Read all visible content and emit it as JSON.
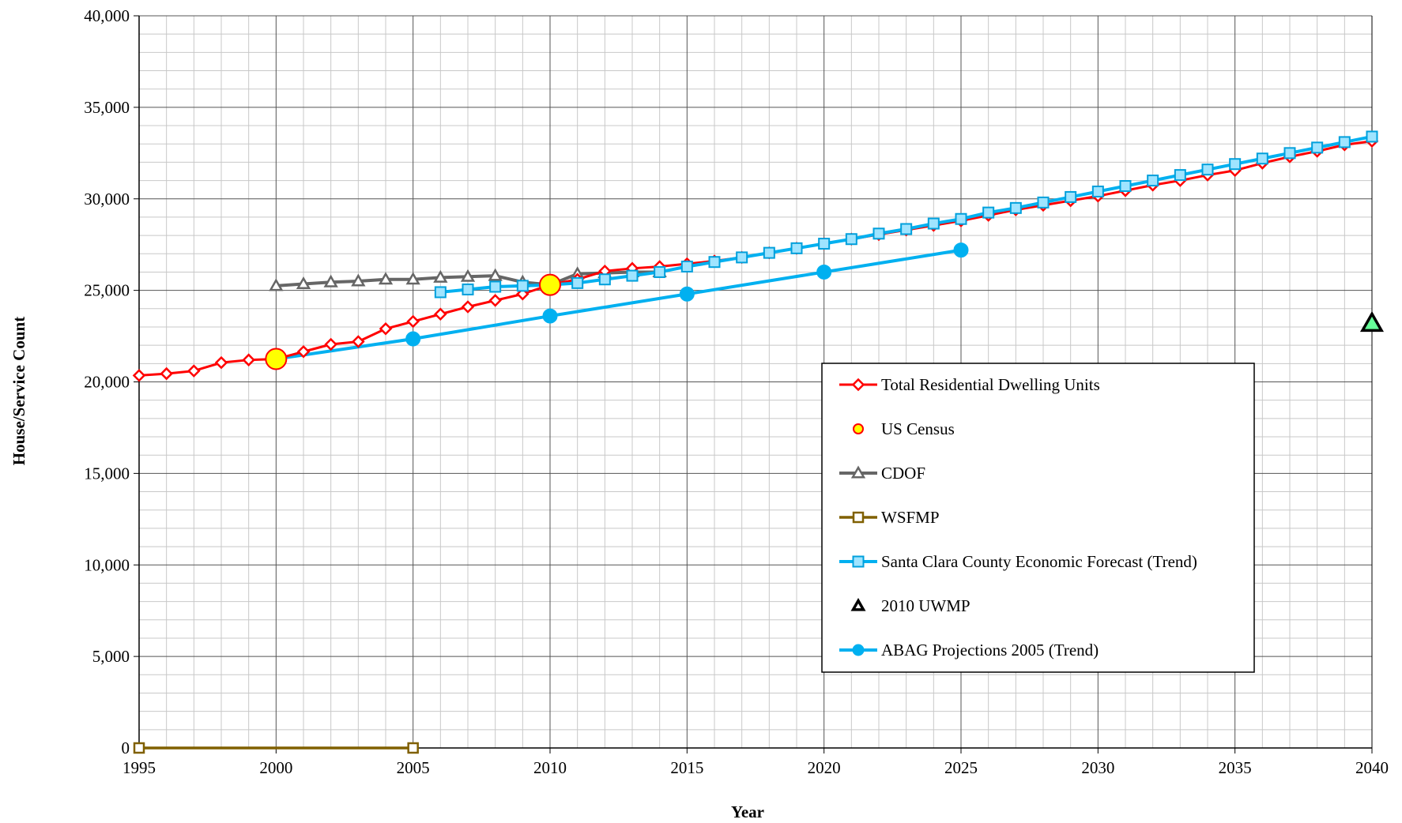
{
  "chart_data": {
    "type": "line",
    "title": "",
    "xlabel": "Year",
    "ylabel": "House/Service Count",
    "xlim": [
      1995,
      2040
    ],
    "ylim": [
      0,
      40000
    ],
    "x_ticks": [
      1995,
      2000,
      2005,
      2010,
      2015,
      2020,
      2025,
      2030,
      2035,
      2040
    ],
    "x_tick_labels": [
      "1995",
      "2000",
      "2005",
      "2010",
      "2015",
      "2020",
      "2025",
      "2030",
      "2035",
      "2040"
    ],
    "y_ticks": [
      0,
      5000,
      10000,
      15000,
      20000,
      25000,
      30000,
      35000,
      40000
    ],
    "y_tick_labels": [
      "0",
      "5,000",
      "10,000",
      "15,000",
      "20,000",
      "25,000",
      "30,000",
      "35,000",
      "40,000"
    ],
    "grid": true,
    "legend_position": "right",
    "series": [
      {
        "name": "Total Residential Dwelling Units",
        "color": "#ff0000",
        "marker": "diamond",
        "x": [
          1995,
          1996,
          1997,
          1998,
          1999,
          2000,
          2001,
          2002,
          2003,
          2004,
          2005,
          2006,
          2007,
          2008,
          2009,
          2010,
          2011,
          2012,
          2013,
          2014,
          2015,
          2016,
          2017,
          2018,
          2019,
          2020,
          2021,
          2022,
          2023,
          2024,
          2025,
          2026,
          2027,
          2028,
          2029,
          2030,
          2031,
          2032,
          2033,
          2034,
          2035,
          2036,
          2037,
          2038,
          2039,
          2040
        ],
        "y": [
          20350,
          20450,
          20600,
          21050,
          21200,
          21250,
          21650,
          22050,
          22200,
          22900,
          23300,
          23700,
          24100,
          24450,
          24800,
          25300,
          25600,
          26050,
          26200,
          26300,
          26450,
          26600,
          26800,
          27050,
          27300,
          27550,
          27800,
          28050,
          28300,
          28550,
          28800,
          29100,
          29400,
          29650,
          29900,
          30150,
          30450,
          30750,
          31000,
          31300,
          31550,
          31950,
          32300,
          32600,
          32950,
          33150
        ]
      },
      {
        "name": "US Census",
        "color": "#ffff00",
        "marker": "circle",
        "x": [
          2000,
          2010
        ],
        "y": [
          21250,
          25300
        ]
      },
      {
        "name": "CDOF",
        "color": "#666666",
        "marker": "triangle",
        "x": [
          2000,
          2001,
          2002,
          2003,
          2004,
          2005,
          2006,
          2007,
          2008,
          2009,
          2010,
          2011,
          2012,
          2013,
          2014
        ],
        "y": [
          25250,
          25350,
          25450,
          25500,
          25600,
          25600,
          25700,
          25750,
          25800,
          25450,
          25300,
          25900,
          25950,
          26000,
          26000
        ]
      },
      {
        "name": "WSFMP",
        "color": "#806000",
        "marker": "square",
        "x": [
          1995,
          2005
        ],
        "y": [
          0,
          0
        ]
      },
      {
        "name": "Santa Clara County Economic Forecast (Trend)",
        "color": "#00b0f0",
        "marker": "square",
        "x": [
          2006,
          2007,
          2008,
          2009,
          2010,
          2011,
          2012,
          2013,
          2014,
          2015,
          2016,
          2017,
          2018,
          2019,
          2020,
          2021,
          2022,
          2023,
          2024,
          2025,
          2026,
          2027,
          2028,
          2029,
          2030,
          2031,
          2032,
          2033,
          2034,
          2035,
          2036,
          2037,
          2038,
          2039,
          2040
        ],
        "y": [
          24900,
          25050,
          25200,
          25250,
          25300,
          25400,
          25600,
          25800,
          26000,
          26300,
          26550,
          26800,
          27050,
          27300,
          27550,
          27800,
          28100,
          28350,
          28650,
          28900,
          29250,
          29500,
          29800,
          30100,
          30400,
          30700,
          31000,
          31300,
          31600,
          31900,
          32200,
          32500,
          32800,
          33100,
          33400
        ]
      },
      {
        "name": "2010 UWMP",
        "color": "#00cc66",
        "marker": "triangle",
        "x": [
          2040
        ],
        "y": [
          23200
        ]
      },
      {
        "name": "ABAG Projections 2005 (Trend)",
        "color": "#00b0f0",
        "marker": "circle",
        "x": [
          2000,
          2005,
          2010,
          2015,
          2020,
          2025
        ],
        "y": [
          21250,
          22350,
          23600,
          24800,
          26000,
          27200
        ]
      }
    ]
  }
}
